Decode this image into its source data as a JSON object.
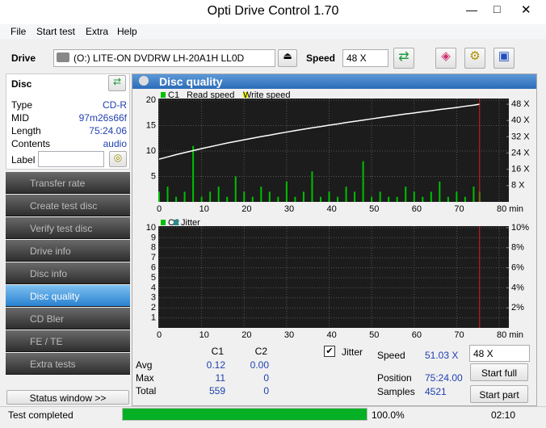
{
  "window": {
    "title": "Opti Drive Control 1.70"
  },
  "menu": [
    "File",
    "Start test",
    "Extra",
    "Help"
  ],
  "toolbar": {
    "drive_label": "Drive",
    "drive": "(O:)  LITE-ON DVDRW LH-20A1H LL0D",
    "speed_label": "Speed",
    "speed": "48 X"
  },
  "disc": {
    "title": "Disc",
    "fields": [
      [
        "Type",
        "CD-R"
      ],
      [
        "MID",
        "97m26s66f"
      ],
      [
        "Length",
        "75:24.06"
      ],
      [
        "Contents",
        "audio"
      ]
    ],
    "label_field": "Label"
  },
  "nav": {
    "items": [
      "Transfer rate",
      "Create test disc",
      "Verify test disc",
      "Drive info",
      "Disc info",
      "Disc quality",
      "CD Bler",
      "FE / TE",
      "Extra tests"
    ],
    "active_index": 5,
    "status_button": "Status window >>"
  },
  "panel": {
    "title": "Disc quality"
  },
  "chart_data": [
    {
      "type": "bar",
      "x": [
        0,
        2,
        4,
        6,
        8,
        10,
        12,
        14,
        16,
        18,
        20,
        22,
        24,
        26,
        28,
        30,
        32,
        34,
        36,
        38,
        40,
        42,
        44,
        46,
        48,
        50,
        52,
        54,
        56,
        58,
        60,
        62,
        64,
        66,
        68,
        70,
        72,
        74,
        75.4
      ],
      "series": [
        {
          "name": "C1",
          "color": "#00c000",
          "values": [
            2,
            3,
            1,
            2,
            11,
            1,
            2,
            3,
            1,
            5,
            2,
            1,
            3,
            2,
            1,
            4,
            1,
            2,
            6,
            1,
            2,
            1,
            3,
            2,
            8,
            1,
            2,
            1,
            1,
            3,
            2,
            1,
            2,
            4,
            1,
            2,
            1,
            3,
            2
          ]
        },
        {
          "name": "Read speed",
          "color": "#ffffff",
          "axis": "y2",
          "values": [
            21.0,
            22.1,
            23.2,
            24.2,
            25.2,
            26.2,
            27.1,
            28.0,
            28.9,
            29.7,
            30.5,
            31.3,
            32.1,
            32.8,
            33.6,
            34.3,
            35.0,
            35.7,
            36.4,
            37.0,
            37.7,
            38.3,
            39.0,
            39.6,
            40.2,
            40.8,
            41.4,
            42.0,
            42.6,
            43.2,
            43.7,
            44.3,
            44.8,
            45.4,
            45.9,
            46.4,
            47.0,
            47.5,
            48.0
          ]
        },
        {
          "name": "Write speed",
          "color": "#ffff00",
          "axis": "y2",
          "values": [
            null,
            null,
            null,
            null,
            null,
            null,
            null,
            null,
            null,
            null,
            null,
            null,
            null,
            null,
            null,
            null,
            null,
            null,
            null,
            null,
            null,
            null,
            null,
            null,
            null,
            null,
            null,
            null,
            null,
            null,
            null,
            null,
            null,
            null,
            null,
            null,
            null,
            null,
            null
          ]
        }
      ],
      "xlim": [
        0,
        80
      ],
      "xticks": [
        0,
        10,
        20,
        30,
        40,
        50,
        60,
        70,
        {
          "value": 80,
          "label": "80 min"
        }
      ],
      "ylim": [
        0,
        20
      ],
      "yticks": [
        5,
        10,
        15,
        20
      ],
      "y2lim": [
        0,
        50
      ],
      "y2ticks": [
        {
          "value": 8,
          "label": "8 X"
        },
        {
          "value": 16,
          "label": "16 X"
        },
        {
          "value": 24,
          "label": "24 X"
        },
        {
          "value": 32,
          "label": "32 X"
        },
        {
          "value": 40,
          "label": "40 X"
        },
        {
          "value": 48,
          "label": "48 X"
        }
      ],
      "end_x": 75.4,
      "grid": true
    },
    {
      "type": "bar",
      "x": [
        0,
        2,
        4,
        6,
        8,
        10,
        12,
        14,
        16,
        18,
        20,
        22,
        24,
        26,
        28,
        30,
        32,
        34,
        36,
        38,
        40,
        42,
        44,
        46,
        48,
        50,
        52,
        54,
        56,
        58,
        60,
        62,
        64,
        66,
        68,
        70,
        72,
        74,
        75.4
      ],
      "series": [
        {
          "name": "C2",
          "color": "#00c000",
          "values": [
            0,
            0,
            0,
            0,
            0,
            0,
            0,
            0,
            0,
            0,
            0,
            0,
            0,
            0,
            0,
            0,
            0,
            0,
            0,
            0,
            0,
            0,
            0,
            0,
            0,
            0,
            0,
            0,
            0,
            0,
            0,
            0,
            0,
            0,
            0,
            0,
            0,
            0,
            0
          ]
        },
        {
          "name": "Jitter",
          "color": "#2a8a8a",
          "axis": "y2",
          "values": [
            null,
            null,
            null,
            null,
            null,
            null,
            null,
            null,
            null,
            null,
            null,
            null,
            null,
            null,
            null,
            null,
            null,
            null,
            null,
            null,
            null,
            null,
            null,
            null,
            null,
            null,
            null,
            null,
            null,
            null,
            null,
            null,
            null,
            null,
            null,
            null,
            null,
            null,
            null
          ]
        }
      ],
      "xlim": [
        0,
        80
      ],
      "xticks": [
        0,
        10,
        20,
        30,
        40,
        50,
        60,
        70,
        {
          "value": 80,
          "label": "80 min"
        }
      ],
      "ylim": [
        0,
        10
      ],
      "yticks": [
        1,
        2,
        3,
        4,
        5,
        6,
        7,
        8,
        9,
        10
      ],
      "y2lim": [
        0,
        10
      ],
      "y2ticks": [
        {
          "value": 2,
          "label": "2%"
        },
        {
          "value": 4,
          "label": "4%"
        },
        {
          "value": 6,
          "label": "6%"
        },
        {
          "value": 8,
          "label": "8%"
        },
        {
          "value": 10,
          "label": "10%"
        }
      ],
      "end_x": 75.4,
      "grid": true
    }
  ],
  "stats": {
    "headers": [
      "C1",
      "C2"
    ],
    "rows": [
      [
        "Avg",
        "0.12",
        "0.00"
      ],
      [
        "Max",
        "11",
        "0"
      ],
      [
        "Total",
        "559",
        "0"
      ]
    ],
    "jitter_label": "Jitter",
    "jitter_checked": true
  },
  "info": {
    "speed_label": "Speed",
    "speed": "51.03 X",
    "speed_select": "48 X",
    "position_label": "Position",
    "position": "75:24.00",
    "samples_label": "Samples",
    "samples": "4521",
    "start_full": "Start full",
    "start_part": "Start part"
  },
  "status": {
    "text": "Test completed",
    "progress": 100,
    "progress_label": "100.0%",
    "time": "02:10"
  }
}
